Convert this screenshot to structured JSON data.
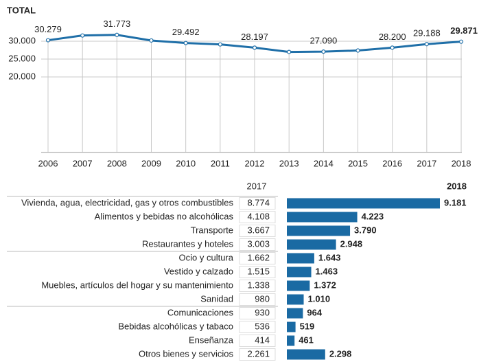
{
  "chart_data": [
    {
      "type": "line",
      "title": "TOTAL",
      "color": "#1f6fa8",
      "categories": [
        "2006",
        "2007",
        "2008",
        "2009",
        "2010",
        "2011",
        "2012",
        "2013",
        "2014",
        "2015",
        "2016",
        "2017",
        "2018"
      ],
      "values": [
        30279,
        31600,
        31773,
        30200,
        29492,
        29100,
        28197,
        27000,
        27090,
        27400,
        28200,
        29188,
        29871
      ],
      "value_labels": [
        "30.279",
        null,
        "31.773",
        null,
        "29.492",
        null,
        "28.197",
        null,
        "27.090",
        null,
        "28.200",
        "29.188",
        "29.871"
      ],
      "ylim": [
        0,
        35000
      ],
      "yticks": [
        {
          "value": 20000,
          "label": "20.000"
        },
        {
          "value": 25000,
          "label": "25.000"
        },
        {
          "value": 30000,
          "label": "30.000"
        }
      ],
      "grid": true
    },
    {
      "type": "bar",
      "orientation": "horizontal",
      "categories": [
        "Vivienda, agua, electricidad, gas y otros combustibles",
        "Alimentos y bebidas no alcohólicas",
        "Transporte",
        "Restaurantes y hoteles",
        "Ocio y cultura",
        "Vestido y calzado",
        "Muebles, artículos del hogar y su mantenimiento",
        "Sanidad",
        "Comunicaciones",
        "Bebidas alcohólicas y tabaco",
        "Enseñanza",
        "Otros bienes y servicios"
      ],
      "series": [
        {
          "name": "2017",
          "values": [
            8774,
            4108,
            3667,
            3003,
            1662,
            1515,
            1338,
            980,
            930,
            536,
            414,
            2261
          ],
          "value_labels": [
            "8.774",
            "4.108",
            "3.667",
            "3.003",
            "1.662",
            "1.515",
            "1.338",
            "980",
            "930",
            "536",
            "414",
            "2.261"
          ]
        },
        {
          "name": "2018",
          "color": "#1a6aa3",
          "values": [
            9181,
            4223,
            3790,
            2948,
            1643,
            1463,
            1372,
            1010,
            964,
            519,
            461,
            2298
          ],
          "value_labels": [
            "9.181",
            "4.223",
            "3.790",
            "2.948",
            "1.643",
            "1.463",
            "1.372",
            "1.010",
            "964",
            "519",
            "461",
            "2.298"
          ]
        }
      ]
    }
  ]
}
